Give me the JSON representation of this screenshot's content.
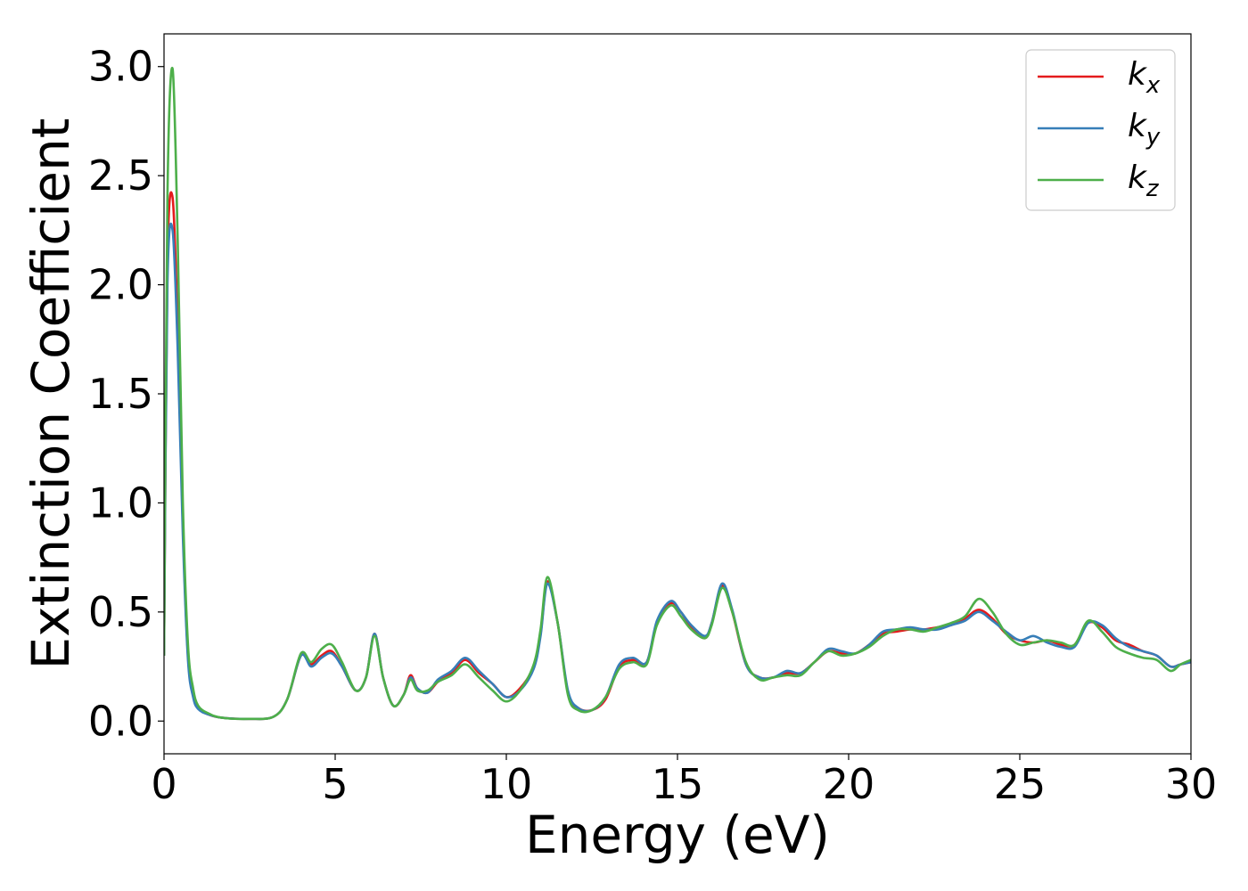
{
  "chart_data": {
    "type": "line",
    "xlabel": "Energy (eV)",
    "ylabel": "Extinction Coefficient",
    "xlim": [
      0,
      30
    ],
    "ylim": [
      -0.15,
      3.15
    ],
    "xticks": [
      0,
      5,
      10,
      15,
      20,
      25,
      30
    ],
    "xtick_labels": [
      "0",
      "5",
      "10",
      "15",
      "20",
      "25",
      "30"
    ],
    "yticks": [
      0.0,
      0.5,
      1.0,
      1.5,
      2.0,
      2.5,
      3.0
    ],
    "ytick_labels": [
      "0.0",
      "0.5",
      "1.0",
      "1.5",
      "2.0",
      "2.5",
      "3.0"
    ],
    "grid": false,
    "legend_position": "top-right",
    "series": [
      {
        "name": "k_x",
        "label_main": "k",
        "label_sub": "x",
        "color": "#e41a1c",
        "x": [
          0,
          0.1,
          0.25,
          0.4,
          0.55,
          0.7,
          0.85,
          1.0,
          1.3,
          1.7,
          2.5,
          3.2,
          3.6,
          4.0,
          4.3,
          4.6,
          4.9,
          5.2,
          5.6,
          5.9,
          6.15,
          6.4,
          6.7,
          7.0,
          7.2,
          7.4,
          7.7,
          8.0,
          8.4,
          8.8,
          9.2,
          9.6,
          10.0,
          10.4,
          10.8,
          11.0,
          11.2,
          11.5,
          11.8,
          12.1,
          12.5,
          12.9,
          13.3,
          13.7,
          14.1,
          14.4,
          14.8,
          15.1,
          15.4,
          15.8,
          16.0,
          16.3,
          16.6,
          17.0,
          17.4,
          17.8,
          18.2,
          18.6,
          19.0,
          19.4,
          19.8,
          20.2,
          20.6,
          21.0,
          21.4,
          21.8,
          22.2,
          22.6,
          23.0,
          23.4,
          23.8,
          24.2,
          24.6,
          25.0,
          25.4,
          25.8,
          26.2,
          26.6,
          27.0,
          27.4,
          27.8,
          28.2,
          28.6,
          29.0,
          29.4,
          29.7,
          30.0
        ],
        "values": [
          0.3,
          2.1,
          2.4,
          1.8,
          0.9,
          0.3,
          0.12,
          0.06,
          0.03,
          0.015,
          0.01,
          0.02,
          0.1,
          0.3,
          0.26,
          0.3,
          0.32,
          0.25,
          0.14,
          0.2,
          0.4,
          0.2,
          0.07,
          0.12,
          0.21,
          0.15,
          0.13,
          0.18,
          0.22,
          0.28,
          0.22,
          0.17,
          0.11,
          0.15,
          0.25,
          0.4,
          0.64,
          0.45,
          0.13,
          0.06,
          0.05,
          0.1,
          0.25,
          0.28,
          0.27,
          0.45,
          0.54,
          0.5,
          0.43,
          0.38,
          0.45,
          0.62,
          0.5,
          0.26,
          0.2,
          0.2,
          0.22,
          0.22,
          0.27,
          0.32,
          0.31,
          0.31,
          0.35,
          0.4,
          0.41,
          0.42,
          0.42,
          0.43,
          0.44,
          0.47,
          0.51,
          0.47,
          0.4,
          0.37,
          0.36,
          0.37,
          0.35,
          0.35,
          0.45,
          0.43,
          0.37,
          0.35,
          0.32,
          0.3,
          0.25,
          0.26,
          0.27
        ]
      },
      {
        "name": "k_y",
        "label_main": "k",
        "label_sub": "y",
        "color": "#377eb8",
        "x": [
          0,
          0.1,
          0.25,
          0.4,
          0.55,
          0.7,
          0.85,
          1.0,
          1.3,
          1.7,
          2.5,
          3.2,
          3.6,
          4.0,
          4.3,
          4.6,
          4.9,
          5.2,
          5.6,
          5.9,
          6.15,
          6.4,
          6.7,
          7.0,
          7.2,
          7.4,
          7.7,
          8.0,
          8.4,
          8.8,
          9.2,
          9.6,
          10.0,
          10.4,
          10.8,
          11.0,
          11.2,
          11.5,
          11.8,
          12.1,
          12.5,
          12.9,
          13.3,
          13.7,
          14.1,
          14.4,
          14.8,
          15.1,
          15.4,
          15.8,
          16.0,
          16.3,
          16.6,
          17.0,
          17.4,
          17.8,
          18.2,
          18.6,
          19.0,
          19.4,
          19.8,
          20.2,
          20.6,
          21.0,
          21.4,
          21.8,
          22.2,
          22.6,
          23.0,
          23.4,
          23.8,
          24.2,
          24.6,
          25.0,
          25.4,
          25.8,
          26.2,
          26.6,
          27.0,
          27.4,
          27.8,
          28.2,
          28.6,
          29.0,
          29.4,
          29.7,
          30.0
        ],
        "values": [
          0.3,
          2.0,
          2.25,
          1.7,
          0.85,
          0.28,
          0.11,
          0.055,
          0.03,
          0.015,
          0.01,
          0.02,
          0.1,
          0.3,
          0.25,
          0.29,
          0.31,
          0.25,
          0.14,
          0.2,
          0.4,
          0.2,
          0.07,
          0.12,
          0.2,
          0.15,
          0.13,
          0.19,
          0.23,
          0.29,
          0.23,
          0.17,
          0.11,
          0.14,
          0.24,
          0.39,
          0.63,
          0.45,
          0.14,
          0.06,
          0.05,
          0.11,
          0.26,
          0.29,
          0.27,
          0.46,
          0.55,
          0.5,
          0.44,
          0.39,
          0.45,
          0.63,
          0.51,
          0.26,
          0.2,
          0.2,
          0.23,
          0.22,
          0.27,
          0.33,
          0.32,
          0.31,
          0.35,
          0.41,
          0.42,
          0.43,
          0.42,
          0.42,
          0.44,
          0.46,
          0.5,
          0.46,
          0.41,
          0.37,
          0.39,
          0.36,
          0.34,
          0.34,
          0.45,
          0.44,
          0.38,
          0.34,
          0.32,
          0.3,
          0.25,
          0.26,
          0.27
        ]
      },
      {
        "name": "k_z",
        "label_main": "k",
        "label_sub": "z",
        "color": "#4daf4a",
        "x": [
          0,
          0.1,
          0.25,
          0.4,
          0.55,
          0.7,
          0.85,
          1.0,
          1.3,
          1.7,
          2.5,
          3.2,
          3.6,
          4.0,
          4.3,
          4.6,
          4.9,
          5.2,
          5.6,
          5.9,
          6.15,
          6.4,
          6.7,
          7.0,
          7.2,
          7.4,
          7.7,
          8.0,
          8.4,
          8.8,
          9.2,
          9.6,
          10.0,
          10.4,
          10.8,
          11.0,
          11.2,
          11.5,
          11.8,
          12.1,
          12.5,
          12.9,
          13.3,
          13.7,
          14.1,
          14.4,
          14.8,
          15.1,
          15.4,
          15.8,
          16.0,
          16.3,
          16.6,
          17.0,
          17.4,
          17.8,
          18.2,
          18.6,
          19.0,
          19.4,
          19.8,
          20.2,
          20.6,
          21.0,
          21.4,
          21.8,
          22.2,
          22.6,
          23.0,
          23.4,
          23.8,
          24.2,
          24.6,
          25.0,
          25.4,
          25.8,
          26.2,
          26.6,
          27.0,
          27.4,
          27.8,
          28.2,
          28.6,
          29.0,
          29.4,
          29.7,
          30.0
        ],
        "values": [
          0.3,
          2.4,
          2.99,
          2.2,
          1.0,
          0.35,
          0.15,
          0.07,
          0.035,
          0.015,
          0.01,
          0.02,
          0.1,
          0.31,
          0.27,
          0.33,
          0.35,
          0.27,
          0.14,
          0.2,
          0.39,
          0.2,
          0.07,
          0.12,
          0.19,
          0.14,
          0.14,
          0.18,
          0.21,
          0.26,
          0.2,
          0.14,
          0.09,
          0.14,
          0.26,
          0.42,
          0.66,
          0.45,
          0.12,
          0.05,
          0.05,
          0.11,
          0.24,
          0.27,
          0.26,
          0.44,
          0.53,
          0.48,
          0.42,
          0.38,
          0.44,
          0.61,
          0.5,
          0.27,
          0.19,
          0.2,
          0.21,
          0.21,
          0.27,
          0.32,
          0.3,
          0.31,
          0.34,
          0.39,
          0.42,
          0.42,
          0.41,
          0.43,
          0.45,
          0.48,
          0.56,
          0.5,
          0.4,
          0.35,
          0.36,
          0.37,
          0.36,
          0.35,
          0.46,
          0.41,
          0.34,
          0.31,
          0.29,
          0.28,
          0.23,
          0.26,
          0.28
        ]
      }
    ]
  }
}
